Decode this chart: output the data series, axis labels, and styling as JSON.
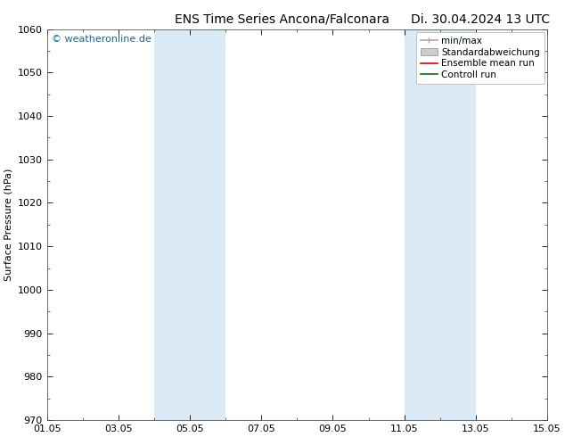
{
  "title_left": "ENS Time Series Ancona/Falconara",
  "title_right": "Di. 30.04.2024 13 UTC",
  "ylabel": "Surface Pressure (hPa)",
  "ylim": [
    970,
    1060
  ],
  "yticks": [
    970,
    980,
    990,
    1000,
    1010,
    1020,
    1030,
    1040,
    1050,
    1060
  ],
  "xlabel_dates": [
    "01.05",
    "03.05",
    "05.05",
    "07.05",
    "09.05",
    "11.05",
    "13.05",
    "15.05"
  ],
  "x_tick_positions": [
    0,
    2,
    4,
    6,
    8,
    10,
    12,
    14
  ],
  "x_start_days": 0,
  "x_end_days": 14,
  "shaded_bands": [
    {
      "x_start": 3.0,
      "x_end": 5.0,
      "color": "#daeaf7"
    },
    {
      "x_start": 10.0,
      "x_end": 12.0,
      "color": "#daeaf7"
    }
  ],
  "watermark": "© weatheronline.de",
  "watermark_color": "#1a6699",
  "background_color": "#ffffff",
  "plot_bg_color": "#ffffff",
  "legend_items": [
    {
      "label": "min/max",
      "color": "#aaaaaa",
      "type": "line_with_caps"
    },
    {
      "label": "Standardabweichung",
      "color": "#cccccc",
      "type": "fill"
    },
    {
      "label": "Ensemble mean run",
      "color": "#dd0000",
      "type": "line"
    },
    {
      "label": "Controll run",
      "color": "#007700",
      "type": "line"
    }
  ],
  "title_fontsize": 10,
  "axis_fontsize": 8,
  "tick_fontsize": 8,
  "legend_fontsize": 7.5,
  "ylabel_fontsize": 8
}
